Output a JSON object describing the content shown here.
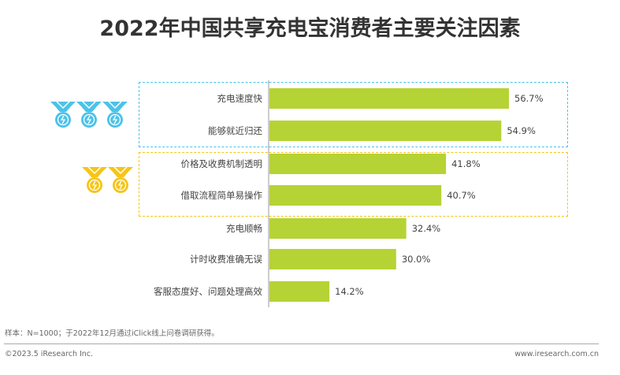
{
  "chart_data": {
    "type": "bar",
    "orientation": "horizontal",
    "title": "2022年中国共享充电宝消费者主要关注因素",
    "categories": [
      "充电速度快",
      "能够就近归还",
      "价格及收费机制透明",
      "借取流程简单易操作",
      "充电顺畅",
      "计时收费准确无误",
      "客服态度好、问题处理高效"
    ],
    "values": [
      56.7,
      54.9,
      41.8,
      40.7,
      32.4,
      30.0,
      14.2
    ],
    "data_labels": [
      "56.7%",
      "54.9%",
      "41.8%",
      "40.7%",
      "32.4%",
      "30.0%",
      "14.2%"
    ],
    "unit": "%",
    "xlim": [
      0,
      60
    ],
    "grid": false,
    "bar_color": "#b5d334",
    "groups": [
      {
        "rows": [
          0,
          1
        ],
        "color": "#4cc3e8",
        "medals": 3,
        "medal_icon": "medal-icon"
      },
      {
        "rows": [
          2,
          3
        ],
        "color": "#f5c518",
        "medals": 2,
        "medal_icon": "medal-icon"
      }
    ]
  },
  "footer": {
    "note": "样本：N=1000；于2022年12月通过iClick线上问卷调研获得。",
    "copyright": "©2023.5 iResearch Inc.",
    "website": "www.iresearch.com.cn"
  }
}
